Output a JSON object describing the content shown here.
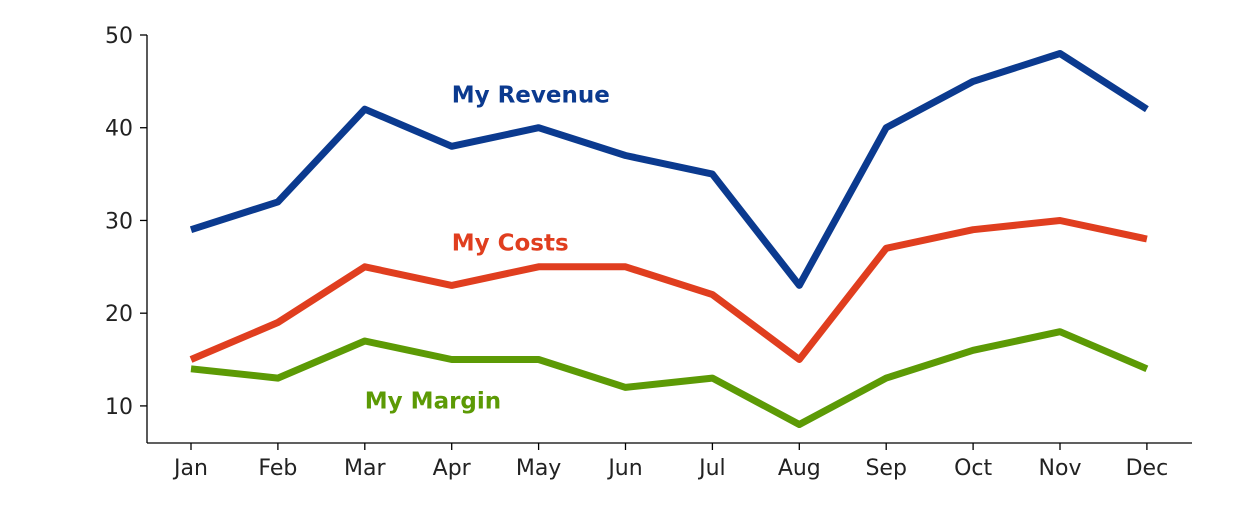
{
  "chart_data": {
    "type": "line",
    "categories": [
      "Jan",
      "Feb",
      "Mar",
      "Apr",
      "May",
      "Jun",
      "Jul",
      "Aug",
      "Sep",
      "Oct",
      "Nov",
      "Dec"
    ],
    "series": [
      {
        "name": "My Revenue",
        "color": "#0b3a8f",
        "values": [
          29,
          32,
          42,
          38,
          40,
          37,
          35,
          23,
          40,
          45,
          48,
          42
        ]
      },
      {
        "name": "My Costs",
        "color": "#e03e1f",
        "values": [
          15,
          19,
          25,
          23,
          25,
          25,
          22,
          15,
          27,
          29,
          30,
          28
        ]
      },
      {
        "name": "My Margin",
        "color": "#5c9a05",
        "values": [
          14,
          13,
          17,
          15,
          15,
          12,
          13,
          8,
          13,
          16,
          18,
          14
        ]
      }
    ],
    "ylim": [
      6,
      50
    ],
    "yticks": [
      10,
      20,
      30,
      40,
      50
    ],
    "grid": false,
    "legend": "inline labels"
  }
}
